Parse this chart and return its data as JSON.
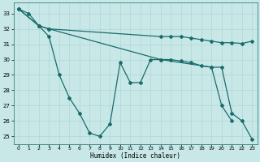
{
  "xlabel": "Humidex (Indice chaleur)",
  "background_color": "#c8e8e8",
  "grid_color": "#b0d4d4",
  "line_color": "#1a6b6b",
  "xlim": [
    -0.5,
    23.5
  ],
  "ylim": [
    24.5,
    33.7
  ],
  "yticks": [
    25,
    26,
    27,
    28,
    29,
    30,
    31,
    32,
    33
  ],
  "xticks": [
    0,
    1,
    2,
    3,
    4,
    5,
    6,
    7,
    8,
    9,
    10,
    11,
    12,
    13,
    14,
    15,
    16,
    17,
    18,
    19,
    20,
    21,
    22,
    23
  ],
  "s1x": [
    0,
    1,
    2,
    3,
    4,
    5,
    6,
    7,
    8,
    9,
    10,
    11,
    12,
    13,
    14,
    19,
    20,
    21
  ],
  "s1y": [
    33.3,
    33.0,
    32.2,
    31.5,
    29.0,
    27.5,
    26.5,
    25.2,
    25.0,
    25.8,
    29.8,
    28.5,
    28.5,
    30.0,
    30.0,
    29.5,
    27.0,
    26.0
  ],
  "s2x": [
    0,
    2,
    3,
    14,
    15,
    16,
    17,
    18,
    19,
    20,
    21,
    22,
    23
  ],
  "s2y": [
    33.3,
    32.2,
    32.0,
    31.5,
    31.5,
    31.5,
    31.4,
    31.3,
    31.2,
    31.1,
    31.1,
    31.05,
    31.2
  ],
  "s3x": [
    0,
    2,
    3,
    14,
    15,
    16,
    17,
    18,
    19,
    20,
    21,
    22,
    23
  ],
  "s3y": [
    33.3,
    32.2,
    32.0,
    30.0,
    30.0,
    29.9,
    29.8,
    29.6,
    29.5,
    29.5,
    26.5,
    26.0,
    24.8
  ]
}
